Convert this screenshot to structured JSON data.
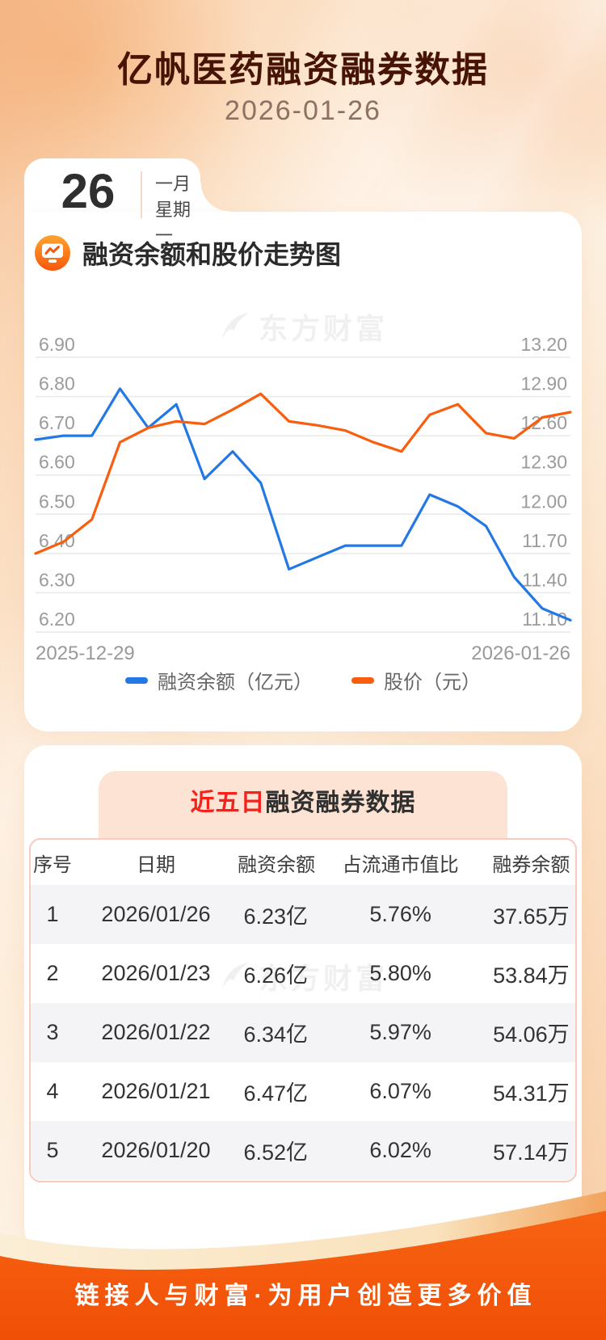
{
  "header": {
    "title": "亿帆医药融资融券数据",
    "date": "2026-01-26"
  },
  "date_card": {
    "day": "26",
    "month": "一月",
    "weekday": "星期一"
  },
  "chart_section": {
    "heading": "融资余额和股价走势图",
    "watermark": "东方财富"
  },
  "chart_data": {
    "type": "line",
    "title": "融资余额和股价走势图",
    "x_start_label": "2025-12-29",
    "x_end_label": "2026-01-26",
    "grid": true,
    "legend_position": "bottom",
    "left_axis": {
      "max": 6.9,
      "min": 6.2,
      "step": 0.1,
      "ticks": [
        "6.90",
        "6.80",
        "6.70",
        "6.60",
        "6.50",
        "6.40",
        "6.30",
        "6.20"
      ]
    },
    "right_axis": {
      "max": 13.2,
      "min": 11.1,
      "step": 0.3,
      "ticks": [
        "13.20",
        "12.90",
        "12.60",
        "12.30",
        "12.00",
        "11.70",
        "11.40",
        "11.10"
      ]
    },
    "series": [
      {
        "name": "融资余额（亿元）",
        "axis": "left",
        "color": "#2478e4",
        "values": [
          6.69,
          6.7,
          6.7,
          6.82,
          6.72,
          6.78,
          6.59,
          6.66,
          6.58,
          6.36,
          6.39,
          6.42,
          6.42,
          6.42,
          6.55,
          6.52,
          6.47,
          6.34,
          6.26,
          6.23
        ]
      },
      {
        "name": "股价（元）",
        "axis": "right",
        "color": "#f95d0e",
        "values": [
          11.7,
          11.79,
          11.96,
          12.55,
          12.66,
          12.71,
          12.69,
          12.8,
          12.92,
          12.71,
          12.68,
          12.64,
          12.55,
          12.48,
          12.76,
          12.84,
          12.62,
          12.58,
          12.74,
          12.78
        ]
      }
    ]
  },
  "table_section": {
    "title_highlight": "近五日",
    "title_rest": "融资融券数据",
    "watermark": "东方财富",
    "columns": [
      "序号",
      "日期",
      "融资余额",
      "占流通市值比",
      "融券余额"
    ],
    "rows": [
      [
        "1",
        "2026/01/26",
        "6.23亿",
        "5.76%",
        "37.65万"
      ],
      [
        "2",
        "2026/01/23",
        "6.26亿",
        "5.80%",
        "53.84万"
      ],
      [
        "3",
        "2026/01/22",
        "6.34亿",
        "5.97%",
        "54.06万"
      ],
      [
        "4",
        "2026/01/21",
        "6.47亿",
        "6.07%",
        "54.31万"
      ],
      [
        "5",
        "2026/01/20",
        "6.52亿",
        "6.02%",
        "57.14万"
      ]
    ]
  },
  "footer": {
    "slogan": "链接人与财富·为用户创造更多价值"
  },
  "colors": {
    "line_blue": "#2478e4",
    "line_orange": "#f95d0e",
    "accent_orange": "#f25708",
    "title_brown": "#471304",
    "highlight_red": "#f3231c",
    "grid": "#e9e9e9",
    "axis_label": "#9b9b9b",
    "table_border": "#f8cbbe",
    "row_stripe": "#f4f4f6"
  }
}
